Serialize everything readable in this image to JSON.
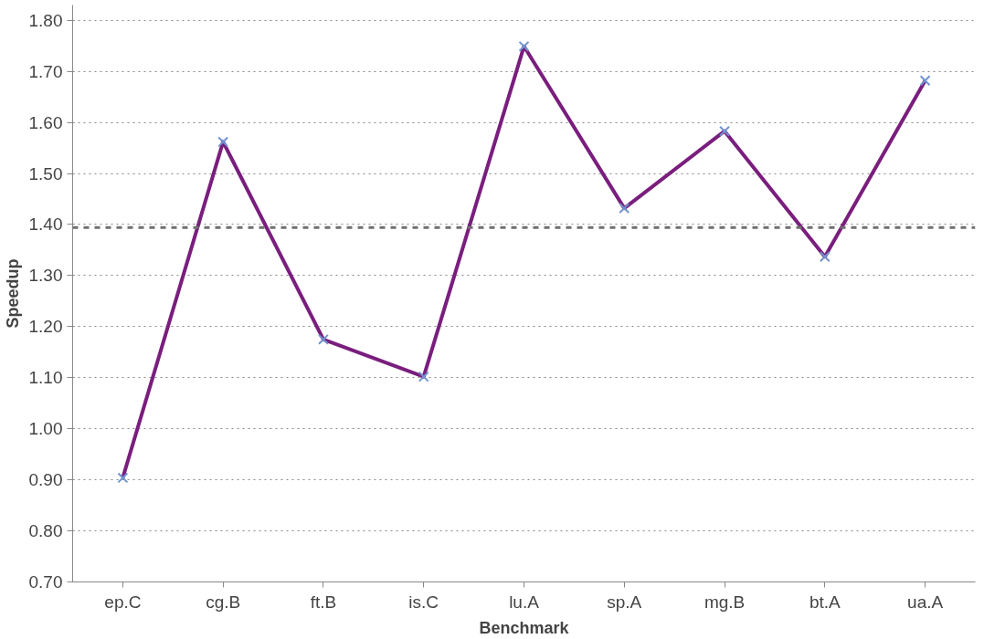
{
  "chart_data": {
    "type": "line",
    "xlabel": "Benchmark",
    "ylabel": "Speedup",
    "categories": [
      "ep.C",
      "cg.B",
      "ft.B",
      "is.C",
      "lu.A",
      "sp.A",
      "mg.B",
      "bt.A",
      "ua.A"
    ],
    "series": [
      {
        "color": "#7a1e7e",
        "colors": [
          "#7094d0",
          "#7094d0",
          "#7094d0",
          "#7094d0",
          "#7094d0",
          "#7094d0",
          "#7094d0",
          "#7094d0",
          "#7094d0"
        ],
        "values": [
          0.904,
          1.562,
          1.175,
          1.102,
          1.749,
          1.432,
          1.583,
          1.337,
          1.682
        ]
      }
    ],
    "ylim": [
      0.7,
      1.83
    ],
    "yticks": [
      {
        "value": 0.7,
        "label": "0.70"
      },
      {
        "value": 0.8,
        "label": "0.80"
      },
      {
        "value": 0.9,
        "label": "0.90"
      },
      {
        "value": 1.0,
        "label": "1.00"
      },
      {
        "value": 1.1,
        "label": "1.10"
      },
      {
        "value": 1.2,
        "label": "1.20"
      },
      {
        "value": 1.3,
        "label": "1.30"
      },
      {
        "value": 1.4,
        "label": "1.40"
      },
      {
        "value": 1.5,
        "label": "1.50"
      },
      {
        "value": 1.6,
        "label": "1.60"
      },
      {
        "value": 1.7,
        "label": "1.70"
      },
      {
        "value": 1.8,
        "label": "1.80"
      }
    ],
    "ref_lines": [
      {
        "axis": "y",
        "value": 1.394,
        "label": null,
        "color": "#707070",
        "line_style": "dashed"
      }
    ],
    "grid": "y",
    "marker": "cross",
    "line_style": "solid"
  }
}
